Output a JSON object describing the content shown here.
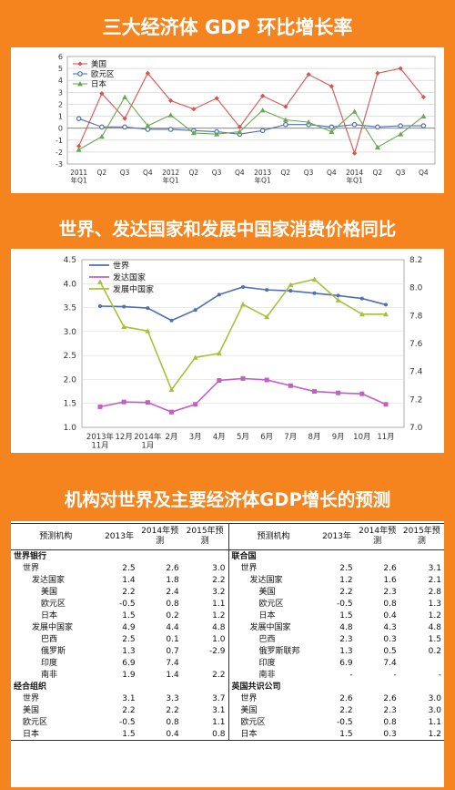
{
  "titles": {
    "t1": "三大经济体 GDP 环比增长率",
    "t2": "世界、发达国家和发展中国家消费价格同比",
    "t3": "机构对世界及主要经济体GDP增长的预测"
  },
  "chart_data": [
    {
      "type": "line",
      "categories": [
        "2011\n年Q1",
        "Q2",
        "Q3",
        "Q4",
        "2012\n年Q1",
        "Q2",
        "Q3",
        "Q4",
        "2013\n年Q1",
        "Q2",
        "Q3",
        "Q4",
        "2014\n年Q1",
        "Q2",
        "Q3",
        "Q4"
      ],
      "ylim": [
        -3,
        6
      ],
      "yticks": [
        -3,
        -2,
        -1,
        0,
        1,
        2,
        3,
        4,
        5,
        6
      ],
      "legend": "top-left",
      "series": [
        {
          "name": "美国",
          "color": "#d9534f",
          "values": [
            -1.5,
            2.9,
            0.8,
            4.6,
            2.3,
            1.6,
            2.5,
            0.1,
            2.7,
            1.8,
            4.5,
            3.5,
            -2.1,
            4.6,
            5.0,
            2.6
          ]
        },
        {
          "name": "欧元区",
          "color": "#4e6fb5",
          "values": [
            0.8,
            0.1,
            0.1,
            -0.1,
            -0.1,
            -0.2,
            -0.3,
            -0.5,
            -0.2,
            0.3,
            0.3,
            0.1,
            0.3,
            0.1,
            0.2,
            0.2
          ]
        },
        {
          "name": "日本",
          "color": "#6aa84f",
          "values": [
            -1.8,
            -0.7,
            2.6,
            0.2,
            1.1,
            -0.4,
            -0.5,
            -0.3,
            1.5,
            0.7,
            0.5,
            -0.3,
            1.4,
            -1.6,
            -0.5,
            1.0
          ]
        }
      ]
    },
    {
      "type": "line",
      "categories": [
        "2013年\n11月",
        "12月",
        "2014年\n1月",
        "2月",
        "3月",
        "4月",
        "5月",
        "6月",
        "7月",
        "8月",
        "9月",
        "10月",
        "11月"
      ],
      "ylim_left": [
        1.0,
        4.5
      ],
      "yticks_left": [
        1.0,
        1.5,
        2.0,
        2.5,
        3.0,
        3.5,
        4.0,
        4.5
      ],
      "ylim_right": [
        7.0,
        8.2
      ],
      "yticks_right": [
        7.0,
        7.2,
        7.4,
        7.6,
        7.8,
        8.0,
        8.2
      ],
      "legend": "top-left",
      "series": [
        {
          "name": "世界",
          "color": "#4e6fb5",
          "axis": "left",
          "values": [
            3.53,
            3.52,
            3.49,
            3.23,
            3.45,
            3.77,
            3.93,
            3.87,
            3.85,
            3.8,
            3.75,
            3.69,
            3.56
          ]
        },
        {
          "name": "发达国家",
          "color": "#c45ec2",
          "axis": "left",
          "values": [
            1.43,
            1.53,
            1.52,
            1.32,
            1.48,
            1.98,
            2.02,
            1.99,
            1.87,
            1.75,
            1.72,
            1.7,
            1.48
          ]
        },
        {
          "name": "发展中国家",
          "color": "#a8c13a",
          "axis": "right",
          "values": [
            8.04,
            7.72,
            7.69,
            7.27,
            7.5,
            7.53,
            7.88,
            7.79,
            8.02,
            8.06,
            7.91,
            7.81,
            7.81
          ]
        }
      ]
    },
    {
      "type": "table",
      "headers": [
        "预测机构",
        "2013年",
        "2014年预\n测",
        "2015年预\n测"
      ],
      "left": [
        {
          "name": "世界银行",
          "bold": true,
          "indent": 0,
          "v": [
            "",
            "",
            ""
          ]
        },
        {
          "name": "世界",
          "indent": 1,
          "v": [
            "2.5",
            "2.6",
            "3.0"
          ]
        },
        {
          "name": "发达国家",
          "indent": 2,
          "v": [
            "1.4",
            "1.8",
            "2.2"
          ]
        },
        {
          "name": "美国",
          "indent": 3,
          "v": [
            "2.2",
            "2.4",
            "3.2"
          ]
        },
        {
          "name": "欧元区",
          "indent": 3,
          "v": [
            "-0.5",
            "0.8",
            "1.1"
          ]
        },
        {
          "name": "日本",
          "indent": 3,
          "v": [
            "1.5",
            "0.2",
            "1.2"
          ]
        },
        {
          "name": "发展中国家",
          "indent": 2,
          "v": [
            "4.9",
            "4.4",
            "4.8"
          ]
        },
        {
          "name": "巴西",
          "indent": 3,
          "v": [
            "2.5",
            "0.1",
            "1.0"
          ]
        },
        {
          "name": "俄罗斯",
          "indent": 3,
          "v": [
            "1.3",
            "0.7",
            "-2.9"
          ]
        },
        {
          "name": "印度",
          "indent": 3,
          "v": [
            "6.9",
            "7.4",
            ""
          ]
        },
        {
          "name": "南非",
          "indent": 3,
          "v": [
            "1.9",
            "1.4",
            "2.2"
          ]
        },
        {
          "name": "经合组织",
          "bold": true,
          "indent": 0,
          "v": [
            "",
            "",
            ""
          ]
        },
        {
          "name": "世界",
          "indent": 1,
          "v": [
            "3.1",
            "3.3",
            "3.7"
          ]
        },
        {
          "name": "美国",
          "indent": 1,
          "v": [
            "2.2",
            "2.2",
            "3.1"
          ]
        },
        {
          "name": "欧元区",
          "indent": 1,
          "v": [
            "-0.5",
            "0.8",
            "1.1"
          ]
        },
        {
          "name": "日本",
          "indent": 1,
          "v": [
            "1.5",
            "0.4",
            "0.8"
          ]
        }
      ],
      "right": [
        {
          "name": "联合国",
          "bold": true,
          "indent": 0,
          "v": [
            "",
            "",
            ""
          ]
        },
        {
          "name": "世界",
          "indent": 1,
          "v": [
            "2.5",
            "2.6",
            "3.1"
          ]
        },
        {
          "name": "发达国家",
          "indent": 2,
          "v": [
            "1.2",
            "1.6",
            "2.1"
          ]
        },
        {
          "name": "美国",
          "indent": 3,
          "v": [
            "2.2",
            "2.3",
            "2.8"
          ]
        },
        {
          "name": "欧元区",
          "indent": 3,
          "v": [
            "-0.5",
            "0.8",
            "1.3"
          ]
        },
        {
          "name": "日本",
          "indent": 3,
          "v": [
            "1.5",
            "0.4",
            "1.2"
          ]
        },
        {
          "name": "发展中国家",
          "indent": 2,
          "v": [
            "4.8",
            "4.3",
            "4.8"
          ]
        },
        {
          "name": "巴西",
          "indent": 3,
          "v": [
            "2.3",
            "0.3",
            "1.5"
          ]
        },
        {
          "name": "俄罗斯联邦",
          "indent": 3,
          "v": [
            "1.3",
            "0.5",
            "0.2"
          ]
        },
        {
          "name": "印度",
          "indent": 3,
          "v": [
            "6.9",
            "7.4",
            ""
          ]
        },
        {
          "name": "南非",
          "indent": 3,
          "v": [
            "-",
            "-",
            "-"
          ]
        },
        {
          "name": "英国共识公司",
          "bold": true,
          "indent": 0,
          "v": [
            "",
            "",
            ""
          ]
        },
        {
          "name": "世界",
          "indent": 1,
          "v": [
            "2.6",
            "2.6",
            "3.0"
          ]
        },
        {
          "name": "美国",
          "indent": 1,
          "v": [
            "2.2",
            "2.3",
            "3.0"
          ]
        },
        {
          "name": "欧元区",
          "indent": 1,
          "v": [
            "-0.5",
            "0.8",
            "1.1"
          ]
        },
        {
          "name": "日本",
          "indent": 1,
          "v": [
            "1.5",
            "0.3",
            "1.2"
          ]
        }
      ]
    }
  ]
}
